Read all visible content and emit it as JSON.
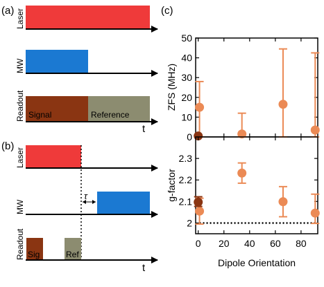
{
  "panel_labels": {
    "a": "(a)",
    "b": "(b)",
    "c": "(c)"
  },
  "colors": {
    "laser": "#ef3a3a",
    "mw": "#1b79d2",
    "signal": "#8a3512",
    "reference": "#8c8c70",
    "orange": "#eb8a55",
    "dark": "#8a3512"
  },
  "panel_a": {
    "row_labels": [
      "Laser",
      "MW",
      "Readout"
    ],
    "signal_label": "Signal",
    "reference_label": "Reference",
    "axis_label": "t"
  },
  "panel_b": {
    "row_labels": [
      "Laser",
      "MW",
      "Readout"
    ],
    "sig_label": "Sig",
    "ref_label": "Ref",
    "tau_label": "τ",
    "axis_label": "t"
  },
  "chart_data": [
    {
      "type": "scatter",
      "ylabel": "ZFS (MHz)",
      "xlim": [
        -2,
        93
      ],
      "ylim": [
        0,
        50
      ],
      "yticks": [
        0,
        10,
        20,
        30,
        40,
        50
      ],
      "xticks": [
        0,
        20,
        40,
        60,
        80
      ],
      "grid": false,
      "series": [
        {
          "color": "orange",
          "x": [
            1,
            34,
            66,
            91
          ],
          "y": [
            15,
            1.5,
            16.5,
            3.5
          ],
          "err_lo": [
            15,
            1.5,
            16.5,
            3.5
          ],
          "err_hi": [
            13,
            10.5,
            28,
            39
          ]
        },
        {
          "color": "dark",
          "x": [
            0
          ],
          "y": [
            0.5
          ]
        }
      ]
    },
    {
      "type": "scatter",
      "ylabel": "g-factor",
      "xlabel": "Dipole Orientation",
      "xlim": [
        -2,
        93
      ],
      "ylim": [
        1.95,
        2.4
      ],
      "yticks": [
        2,
        2.1,
        2.2,
        2.3
      ],
      "xticks": [
        0,
        20,
        40,
        60,
        80
      ],
      "grid": false,
      "reference_line": 2.0,
      "series": [
        {
          "color": "orange",
          "x": [
            1,
            34,
            66,
            91
          ],
          "y": [
            2.055,
            2.232,
            2.099,
            2.046
          ],
          "err_lo": [
            0.06,
            0.047,
            0.07,
            0.048
          ],
          "err_hi": [
            0.06,
            0.047,
            0.07,
            0.088
          ]
        },
        {
          "color": "dark",
          "x": [
            0
          ],
          "y": [
            2.097
          ],
          "err_lo": [
            0.02
          ],
          "err_hi": [
            0.025
          ]
        }
      ]
    }
  ]
}
